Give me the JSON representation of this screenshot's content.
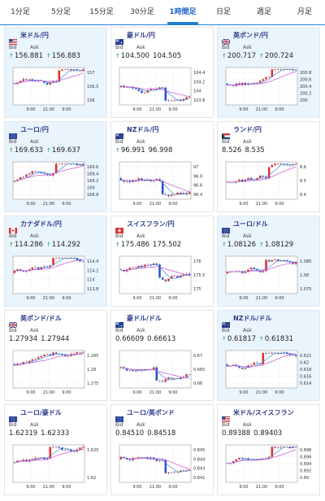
{
  "tabs": [
    "1分足",
    "5分足",
    "15分足",
    "30分足",
    "1時間足",
    "日足",
    "週足",
    "月足"
  ],
  "active_tab": "1時間足",
  "labels": {
    "bid": "Bid",
    "ask": "Ask"
  },
  "colors": {
    "up": "#e0302c",
    "down": "#2d4fd0",
    "ma_fast": "#3a8de0",
    "ma_slow": "#c84ad6",
    "accent": "#1f7fd0",
    "title": "#2b3a8a",
    "arrow": "#00a03c"
  },
  "cards": [
    {
      "title": "米ドル/円",
      "flag": "us",
      "bid": "156.881",
      "ask": "156.883",
      "bid_arrow": true,
      "ask_arrow": true,
      "highlight": true,
      "yticks": [
        "157",
        "156.5",
        "156"
      ],
      "xticks": [
        "9:00",
        "21:00",
        "9:00"
      ]
    },
    {
      "title": "豪ドル/円",
      "flag": "au",
      "bid": "104.500",
      "ask": "104.505",
      "bid_arrow": true,
      "ask_arrow": false,
      "highlight": false,
      "yticks": [
        "104.4",
        "104.2",
        "104",
        "103.8"
      ],
      "xticks": [
        "9:00",
        "21:00",
        "9:00"
      ]
    },
    {
      "title": "英ポンド/円",
      "flag": "gb",
      "bid": "200.717",
      "ask": "200.724",
      "bid_arrow": true,
      "ask_arrow": true,
      "highlight": true,
      "yticks": [
        "200.8",
        "200.6",
        "200.4",
        "200.2",
        "200"
      ],
      "xticks": [
        "9:00",
        "21:00",
        "9:00"
      ]
    },
    {
      "title": "ユーロ/円",
      "flag": "eu",
      "bid": "169.633",
      "ask": "169.637",
      "bid_arrow": true,
      "ask_arrow": true,
      "highlight": true,
      "yticks": [
        "169.6",
        "169.4",
        "169.2",
        "169",
        "168.8"
      ],
      "xticks": [
        "9:00",
        "21:00",
        "9:00"
      ]
    },
    {
      "title": "NZドル/円",
      "flag": "nz",
      "bid": "96.991",
      "ask": "96.998",
      "bid_arrow": true,
      "ask_arrow": false,
      "highlight": false,
      "yticks": [
        "97",
        "96.8",
        "96.6",
        "96.4"
      ],
      "xticks": [
        "9:00",
        "21:00",
        "9:00"
      ]
    },
    {
      "title": "ランド/円",
      "flag": "za",
      "bid": "8.526",
      "ask": "8.535",
      "bid_arrow": false,
      "ask_arrow": false,
      "highlight": false,
      "yticks": [
        "8.6",
        "8.5",
        "8.4"
      ],
      "xticks": [
        "9:00",
        "21:00",
        "9:00"
      ]
    },
    {
      "title": "カナダドル/円",
      "flag": "ca",
      "bid": "114.286",
      "ask": "114.292",
      "bid_arrow": true,
      "ask_arrow": true,
      "highlight": true,
      "yticks": [
        "114.4",
        "114.2",
        "114",
        "113.8"
      ],
      "xticks": [
        "9:00",
        "21:00",
        "9:00"
      ]
    },
    {
      "title": "スイスフラン/円",
      "flag": "ch",
      "bid": "175.486",
      "ask": "175.502",
      "bid_arrow": true,
      "ask_arrow": false,
      "highlight": false,
      "yticks": [
        "176",
        "175.5",
        "175"
      ],
      "xticks": [
        "9:00",
        "21:00",
        "9:00"
      ]
    },
    {
      "title": "ユーロ/ドル",
      "flag": "eu",
      "bid": "1.08126",
      "ask": "1.08129",
      "bid_arrow": true,
      "ask_arrow": true,
      "highlight": true,
      "yticks": [
        "1.085",
        "1.08",
        "1.075"
      ],
      "xticks": [
        "9:00",
        "21:00",
        "9:00"
      ]
    },
    {
      "title": "英ポンド/ドル",
      "flag": "gb",
      "bid": "1.27934",
      "ask": "1.27944",
      "bid_arrow": false,
      "ask_arrow": false,
      "highlight": false,
      "yticks": [
        "1.285",
        "1.28",
        "1.275"
      ],
      "xticks": [
        "9:00",
        "21:00",
        "9:00"
      ]
    },
    {
      "title": "豪ドル/ドル",
      "flag": "au",
      "bid": "0.66609",
      "ask": "0.66613",
      "bid_arrow": false,
      "ask_arrow": false,
      "highlight": false,
      "yticks": [
        "0.67",
        "0.665",
        "0.66"
      ],
      "xticks": [
        "9:00",
        "21:00",
        "9:00"
      ]
    },
    {
      "title": "NZドル/ドル",
      "flag": "nz",
      "bid": "0.61817",
      "ask": "0.61831",
      "bid_arrow": true,
      "ask_arrow": true,
      "highlight": true,
      "yticks": [
        "0.622",
        "0.62",
        "0.618",
        "0.616",
        "0.614"
      ],
      "xticks": [
        "9:00",
        "21:00",
        "9:00"
      ]
    },
    {
      "title": "ユーロ/豪ドル",
      "flag": "eu",
      "bid": "1.62319",
      "ask": "1.62333",
      "bid_arrow": false,
      "ask_arrow": false,
      "highlight": false,
      "yticks": [
        "1.625",
        "1.62"
      ],
      "xticks": [
        "9:00",
        "21:00",
        "9:00"
      ]
    },
    {
      "title": "ユーロ/英ポンド",
      "flag": "eu",
      "bid": "0.84510",
      "ask": "0.84518",
      "bid_arrow": false,
      "ask_arrow": false,
      "highlight": false,
      "yticks": [
        "0.845",
        "0.844",
        "0.843",
        "0.842"
      ],
      "xticks": [
        "9:00",
        "21:00",
        "9:00"
      ]
    },
    {
      "title": "米ドル/スイスフラン",
      "flag": "us",
      "bid": "0.89388",
      "ask": "0.89403",
      "bid_arrow": false,
      "ask_arrow": false,
      "highlight": false,
      "yticks": [
        "0.898",
        "0.896",
        "0.894",
        "0.892",
        "0.89"
      ],
      "xticks": [
        "9:00",
        "21:00",
        "9:00"
      ]
    }
  ]
}
